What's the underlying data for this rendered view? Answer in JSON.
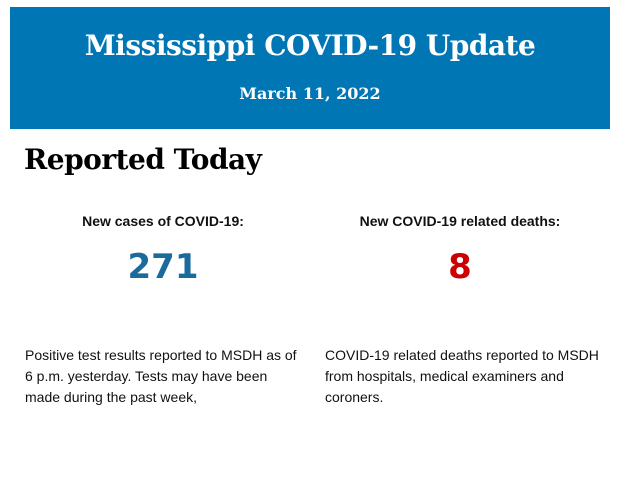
{
  "header": {
    "title": "Mississippi COVID-19 Update",
    "date": "March 11, 2022",
    "bg_color": "#0176b4"
  },
  "section_title": "Reported Today",
  "stats": [
    {
      "label": "New cases of COVID-19:",
      "value": "271",
      "color": "#1a6a9c",
      "description": "Positive test results reported to MSDH as of 6 p.m. yesterday. Tests may have been made during the past week,"
    },
    {
      "label": "New COVID-19 related deaths:",
      "value": "8",
      "color": "#cc0000",
      "description": "COVID-19 related deaths reported to MSDH from hospitals, medical examiners and coroners."
    }
  ]
}
